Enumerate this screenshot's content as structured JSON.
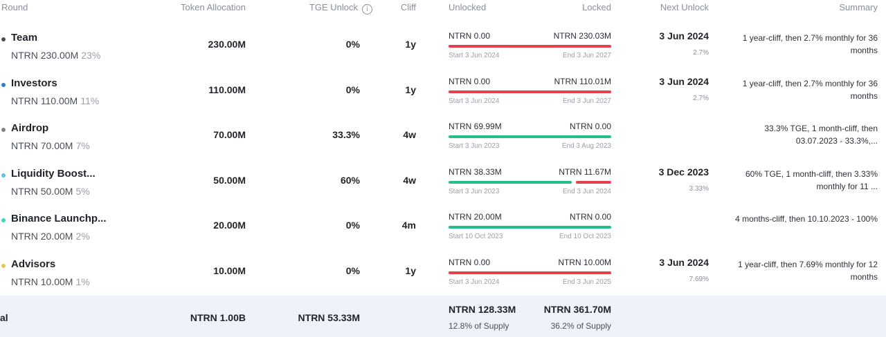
{
  "columns": {
    "round": "Round",
    "allocation": "Token Allocation",
    "tge": "TGE Unlock",
    "cliff": "Cliff",
    "unlocked": "Unlocked",
    "locked": "Locked",
    "next": "Next Unlock",
    "summary": "Summary"
  },
  "rows": [
    {
      "name": "Team",
      "amount": "NTRN 230.00M",
      "pct": "23%",
      "dot": "#4b4f57",
      "allocation": "230.00M",
      "tge": "0%",
      "cliff": "1y",
      "unlocked": "NTRN 0.00",
      "locked": "NTRN 230.03M",
      "unlocked_fraction": 0,
      "start": "Start 3 Jun 2024",
      "end": "End 3 Jun 2027",
      "next_date": "3 Jun 2024",
      "next_pct": "2.7%",
      "summary": "1 year-cliff, then 2.7% monthly for 36 months"
    },
    {
      "name": "Investors",
      "amount": "NTRN 110.00M",
      "pct": "11%",
      "dot": "#2a7fd4",
      "allocation": "110.00M",
      "tge": "0%",
      "cliff": "1y",
      "unlocked": "NTRN 0.00",
      "locked": "NTRN 110.01M",
      "unlocked_fraction": 0,
      "start": "Start 3 Jun 2024",
      "end": "End 3 Jun 2027",
      "next_date": "3 Jun 2024",
      "next_pct": "2.7%",
      "summary": "1 year-cliff, then 2.7% monthly for 36 months"
    },
    {
      "name": "Airdrop",
      "amount": "NTRN 70.00M",
      "pct": "7%",
      "dot": "#7d8189",
      "allocation": "70.00M",
      "tge": "33.3%",
      "cliff": "4w",
      "unlocked": "NTRN 69.99M",
      "locked": "NTRN 0.00",
      "unlocked_fraction": 1,
      "start": "Start 3 Jun 2023",
      "end": "End 3 Aug 2023",
      "next_date": "",
      "next_pct": "",
      "summary": "33.3% TGE, 1 month-cliff, then 03.07.2023 - 33.3%,..."
    },
    {
      "name": "Liquidity Boost...",
      "amount": "NTRN 50.00M",
      "pct": "5%",
      "dot": "#5cc2ea",
      "allocation": "50.00M",
      "tge": "60%",
      "cliff": "4w",
      "unlocked": "NTRN 38.33M",
      "locked": "NTRN 11.67M",
      "unlocked_fraction": 0.77,
      "start": "Start 3 Jun 2023",
      "end": "End 3 Jun 2024",
      "next_date": "3 Dec 2023",
      "next_pct": "3.33%",
      "summary": "60% TGE, 1 month-cliff, then 3.33% monthly for 11 ..."
    },
    {
      "name": "Binance Launchp...",
      "amount": "NTRN 20.00M",
      "pct": "2%",
      "dot": "#3fd6bd",
      "allocation": "20.00M",
      "tge": "0%",
      "cliff": "4m",
      "unlocked": "NTRN 20.00M",
      "locked": "NTRN 0.00",
      "unlocked_fraction": 1,
      "start": "Start 10 Oct 2023",
      "end": "End 10 Oct 2023",
      "next_date": "",
      "next_pct": "",
      "summary": "4 months-cliff, then 10.10.2023 - 100%"
    },
    {
      "name": "Advisors",
      "amount": "NTRN 10.00M",
      "pct": "1%",
      "dot": "#e8c25a",
      "allocation": "10.00M",
      "tge": "0%",
      "cliff": "1y",
      "unlocked": "NTRN 0.00",
      "locked": "NTRN 10.00M",
      "unlocked_fraction": 0,
      "start": "Start 3 Jun 2024",
      "end": "End 3 Jun 2025",
      "next_date": "3 Jun 2024",
      "next_pct": "7.69%",
      "summary": "1 year-cliff, then 7.69% monthly for 12 months"
    }
  ],
  "total": {
    "label": "al",
    "allocation": "NTRN 1.00B",
    "tge": "NTRN 53.33M",
    "unlocked": "NTRN 128.33M",
    "unlocked_supply": "12.8% of Supply",
    "locked": "NTRN 361.70M",
    "locked_supply": "36.2% of Supply"
  },
  "colors": {
    "unlocked": "#1fbf86",
    "locked": "#e5414d"
  }
}
